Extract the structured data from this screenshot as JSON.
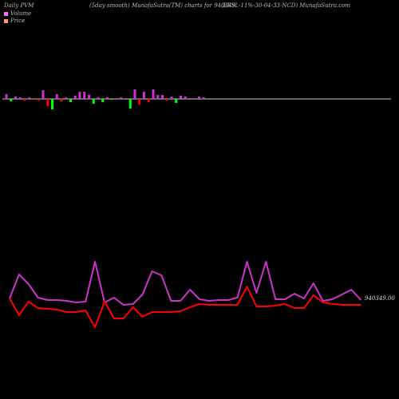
{
  "header": {
    "left": "Daily PVM",
    "center": "(5day smooth) MunafaSutra(TM) charts for 940349",
    "right": "(EFSL-11%-30-04-33-NCD) MunafaSutra.com"
  },
  "legend": [
    {
      "label": "Volume",
      "color": "#ff66ff"
    },
    {
      "label": "Price",
      "color": "#ff9966"
    }
  ],
  "colors": {
    "volume_up": "#cc33cc",
    "volume_down_red": "#ff0000",
    "volume_down_green": "#00ff00",
    "volume_line": "#cc33cc",
    "price_line": "#ff0000",
    "baseline": "#cccccc"
  },
  "chart_data": [
    {
      "type": "bar",
      "title": "Volume",
      "values": [
        6,
        -3,
        3,
        2,
        -2,
        2,
        -1,
        -2,
        11,
        -9,
        -13,
        6,
        -3,
        2,
        -4,
        4,
        9,
        9,
        5,
        -6,
        2,
        -4,
        2,
        -1,
        1,
        2,
        1,
        -12,
        12,
        -7,
        9,
        -4,
        12,
        5,
        5,
        -2,
        3,
        -5,
        4,
        3,
        1,
        1,
        3,
        2
      ],
      "colors": [
        "up",
        "green",
        "up",
        "up",
        "red",
        "up",
        "red",
        "red",
        "up",
        "red",
        "green",
        "up",
        "red",
        "up",
        "green",
        "up",
        "up",
        "up",
        "up",
        "green",
        "up",
        "green",
        "up",
        "green",
        "up",
        "up",
        "up",
        "green",
        "up",
        "red",
        "up",
        "red",
        "up",
        "up",
        "up",
        "red",
        "up",
        "green",
        "up",
        "up",
        "up",
        "up",
        "up",
        "up"
      ]
    },
    {
      "type": "line",
      "series": [
        {
          "role": "volume",
          "values": [
            18,
            48,
            36,
            19,
            16,
            16,
            15,
            13,
            14,
            64,
            13,
            19,
            10,
            11,
            23,
            52,
            47,
            15,
            15,
            29,
            17,
            15,
            16,
            16,
            19,
            64,
            25,
            64,
            17,
            17,
            24,
            18,
            37,
            15,
            17,
            23,
            29,
            16
          ]
        },
        {
          "role": "price",
          "values": [
            18,
            -3,
            14,
            6,
            5,
            4,
            1,
            1,
            3,
            -18,
            14,
            -7,
            -7,
            7,
            -5,
            1,
            1,
            1,
            2,
            7,
            11,
            10,
            10,
            10,
            10,
            33,
            8,
            8,
            9,
            11,
            6,
            6,
            22,
            13,
            11,
            10,
            10,
            10
          ]
        }
      ],
      "end_label": "940349.00"
    }
  ]
}
